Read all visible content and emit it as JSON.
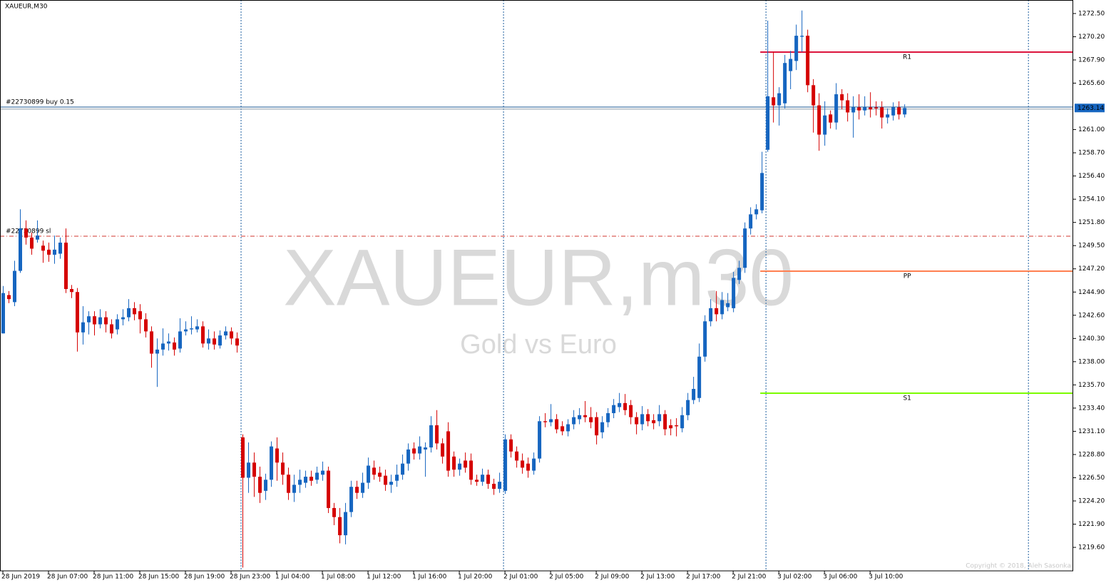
{
  "chart_data": {
    "type": "candlestick",
    "symbol_label": "XAUEUR,M30",
    "watermark": "XAUEUR,m30",
    "watermark_sub": "Gold vs Euro",
    "copyright": "Copyright © 2018, Aleh Sasonka",
    "up_color": "#1565c0",
    "down_color": "#d50000",
    "xlim": [
      -0.5,
      187.6
    ],
    "ylim": [
      1217.27,
      1273.84
    ],
    "yticks": [
      {
        "value": 1272.5,
        "label": "1272.50"
      },
      {
        "value": 1270.2,
        "label": "1270.20"
      },
      {
        "value": 1267.9,
        "label": "1267.90"
      },
      {
        "value": 1265.6,
        "label": "1265.60"
      },
      {
        "value": 1261.0,
        "label": "1261.00"
      },
      {
        "value": 1258.7,
        "label": "1258.70"
      },
      {
        "value": 1256.4,
        "label": "1256.40"
      },
      {
        "value": 1254.1,
        "label": "1254.10"
      },
      {
        "value": 1251.8,
        "label": "1251.80"
      },
      {
        "value": 1249.5,
        "label": "1249.50"
      },
      {
        "value": 1247.2,
        "label": "1247.20"
      },
      {
        "value": 1244.9,
        "label": "1244.90"
      },
      {
        "value": 1242.6,
        "label": "1242.60"
      },
      {
        "value": 1240.3,
        "label": "1240.30"
      },
      {
        "value": 1238.0,
        "label": "1238.00"
      },
      {
        "value": 1235.7,
        "label": "1235.70"
      },
      {
        "value": 1233.4,
        "label": "1233.40"
      },
      {
        "value": 1231.1,
        "label": "1231.10"
      },
      {
        "value": 1228.8,
        "label": "1228.80"
      },
      {
        "value": 1226.5,
        "label": "1226.50"
      },
      {
        "value": 1224.2,
        "label": "1224.20"
      },
      {
        "value": 1221.9,
        "label": "1221.90"
      },
      {
        "value": 1219.6,
        "label": "1219.60"
      }
    ],
    "xticks": [
      {
        "value": 0,
        "label": "28 Jun 2019"
      },
      {
        "value": 8,
        "label": "28 Jun 07:00"
      },
      {
        "value": 16,
        "label": "28 Jun 11:00"
      },
      {
        "value": 24,
        "label": "28 Jun 15:00"
      },
      {
        "value": 32,
        "label": "28 Jun 19:00"
      },
      {
        "value": 40,
        "label": "28 Jun 23:00"
      },
      {
        "value": 48,
        "label": "1 Jul 04:00"
      },
      {
        "value": 56,
        "label": "1 Jul 08:00"
      },
      {
        "value": 64,
        "label": "1 Jul 12:00"
      },
      {
        "value": 72,
        "label": "1 Jul 16:00"
      },
      {
        "value": 80,
        "label": "1 Jul 20:00"
      },
      {
        "value": 88,
        "label": "2 Jul 01:00"
      },
      {
        "value": 96,
        "label": "2 Jul 05:00"
      },
      {
        "value": 104,
        "label": "2 Jul 09:00"
      },
      {
        "value": 112,
        "label": "2 Jul 13:00"
      },
      {
        "value": 120,
        "label": "2 Jul 17:00"
      },
      {
        "value": 128,
        "label": "2 Jul 21:00"
      },
      {
        "value": 136,
        "label": "3 Jul 02:00"
      },
      {
        "value": 144,
        "label": "3 Jul 06:00"
      },
      {
        "value": 152,
        "label": "3 Jul 10:00"
      }
    ],
    "period_separators": [
      41.75,
      87.75,
      133.75,
      179.75
    ],
    "levels": [
      {
        "name": "R1",
        "value": 1268.68,
        "color": "#dc143c"
      },
      {
        "name": "PP",
        "value": 1246.97,
        "color": "#ff7f50"
      },
      {
        "name": "S1",
        "value": 1234.88,
        "color": "#7cfc00"
      }
    ],
    "orders": [
      {
        "label": "#22730899 buy 0.15",
        "value": 1263.23,
        "color": "#1e5a96",
        "style": "solid"
      },
      {
        "label": "#22730899 sl",
        "value": 1250.43,
        "color": "#d0342c",
        "style": "dashdot"
      }
    ],
    "bid": 1263.14,
    "candles": [
      [
        1240.8,
        1245.5,
        1240.8,
        1244.8
      ],
      [
        1244.6,
        1245.0,
        1243.8,
        1244.2
      ],
      [
        1243.9,
        1248.0,
        1243.5,
        1247.0
      ],
      [
        1247.0,
        1253.1,
        1246.8,
        1251.2
      ],
      [
        1251.2,
        1252.0,
        1249.6,
        1250.3
      ],
      [
        1250.3,
        1250.8,
        1248.6,
        1249.2
      ],
      [
        1250.1,
        1252.0,
        1249.8,
        1250.5
      ],
      [
        1249.5,
        1250.0,
        1247.8,
        1249.0
      ],
      [
        1249.1,
        1249.8,
        1247.9,
        1248.6
      ],
      [
        1248.6,
        1250.5,
        1247.7,
        1249.1
      ],
      [
        1248.7,
        1250.3,
        1248.2,
        1249.8
      ],
      [
        1249.8,
        1251.2,
        1244.8,
        1245.2
      ],
      [
        1245.2,
        1245.6,
        1244.3,
        1244.9
      ],
      [
        1244.9,
        1245.3,
        1239.0,
        1240.9
      ],
      [
        1240.9,
        1243.5,
        1239.7,
        1241.9
      ],
      [
        1241.9,
        1243.0,
        1240.7,
        1242.5
      ],
      [
        1242.5,
        1243.0,
        1240.6,
        1241.7
      ],
      [
        1241.7,
        1243.2,
        1241.3,
        1242.4
      ],
      [
        1242.4,
        1243.0,
        1240.9,
        1241.7
      ],
      [
        1241.7,
        1242.2,
        1240.3,
        1240.8
      ],
      [
        1241.2,
        1242.7,
        1240.7,
        1242.2
      ],
      [
        1242.2,
        1243.2,
        1241.6,
        1242.4
      ],
      [
        1242.4,
        1244.2,
        1242.0,
        1243.3
      ],
      [
        1243.3,
        1243.9,
        1242.1,
        1242.7
      ],
      [
        1243.0,
        1243.7,
        1240.8,
        1242.2
      ],
      [
        1242.2,
        1242.8,
        1240.4,
        1241.0
      ],
      [
        1241.0,
        1241.5,
        1237.4,
        1238.8
      ],
      [
        1238.8,
        1240.3,
        1235.5,
        1239.2
      ],
      [
        1239.2,
        1241.3,
        1238.6,
        1239.8
      ],
      [
        1239.8,
        1240.8,
        1239.1,
        1240.0
      ],
      [
        1239.9,
        1240.4,
        1238.6,
        1239.2
      ],
      [
        1239.3,
        1242.3,
        1238.9,
        1241.0
      ],
      [
        1241.0,
        1242.0,
        1240.6,
        1241.2
      ],
      [
        1241.2,
        1242.5,
        1240.7,
        1241.3
      ],
      [
        1241.2,
        1242.2,
        1240.9,
        1241.5
      ],
      [
        1241.5,
        1242.0,
        1239.4,
        1239.8
      ],
      [
        1239.8,
        1241.2,
        1239.2,
        1240.3
      ],
      [
        1240.3,
        1241.0,
        1239.2,
        1239.7
      ],
      [
        1239.6,
        1241.1,
        1239.3,
        1240.6
      ],
      [
        1240.6,
        1241.5,
        1240.2,
        1241.0
      ],
      [
        1241.0,
        1241.4,
        1239.7,
        1240.3
      ],
      [
        1240.3,
        1240.9,
        1238.9,
        1239.6
      ],
      [
        1230.5,
        1230.8,
        1217.6,
        1226.5
      ],
      [
        1226.5,
        1230.0,
        1225.0,
        1228.0
      ],
      [
        1228.0,
        1229.0,
        1224.6,
        1226.6
      ],
      [
        1226.6,
        1227.6,
        1224.0,
        1225.0
      ],
      [
        1225.2,
        1226.9,
        1224.3,
        1226.3
      ],
      [
        1226.3,
        1230.1,
        1225.6,
        1229.6
      ],
      [
        1229.4,
        1230.5,
        1226.2,
        1228.0
      ],
      [
        1228.0,
        1229.0,
        1225.8,
        1226.8
      ],
      [
        1226.8,
        1227.5,
        1224.3,
        1225.0
      ],
      [
        1225.0,
        1226.8,
        1224.1,
        1225.8
      ],
      [
        1225.8,
        1227.3,
        1225.0,
        1226.3
      ],
      [
        1226.0,
        1227.2,
        1225.5,
        1226.6
      ],
      [
        1226.6,
        1227.2,
        1225.7,
        1226.2
      ],
      [
        1226.3,
        1227.6,
        1225.9,
        1227.0
      ],
      [
        1226.8,
        1228.1,
        1226.2,
        1227.2
      ],
      [
        1227.2,
        1227.6,
        1223.0,
        1223.5
      ],
      [
        1223.5,
        1224.0,
        1221.8,
        1222.6
      ],
      [
        1222.6,
        1223.5,
        1220.0,
        1220.8
      ],
      [
        1220.8,
        1224.0,
        1219.9,
        1223.1
      ],
      [
        1223.1,
        1226.2,
        1222.6,
        1225.6
      ],
      [
        1225.6,
        1226.2,
        1224.4,
        1225.0
      ],
      [
        1225.0,
        1227.0,
        1224.5,
        1226.0
      ],
      [
        1226.0,
        1228.5,
        1225.4,
        1227.7
      ],
      [
        1227.5,
        1228.2,
        1226.3,
        1226.8
      ],
      [
        1227.0,
        1227.6,
        1226.1,
        1226.6
      ],
      [
        1226.7,
        1227.3,
        1225.2,
        1225.8
      ],
      [
        1225.8,
        1226.8,
        1225.0,
        1226.1
      ],
      [
        1226.2,
        1227.8,
        1225.6,
        1226.8
      ],
      [
        1226.8,
        1228.8,
        1226.3,
        1227.9
      ],
      [
        1227.9,
        1229.9,
        1227.2,
        1229.3
      ],
      [
        1229.4,
        1230.0,
        1228.3,
        1228.9
      ],
      [
        1228.9,
        1230.6,
        1228.3,
        1229.6
      ],
      [
        1229.3,
        1230.0,
        1226.6,
        1229.5
      ],
      [
        1229.5,
        1232.6,
        1229.0,
        1231.7
      ],
      [
        1231.7,
        1233.2,
        1229.3,
        1229.9
      ],
      [
        1229.9,
        1230.4,
        1227.9,
        1228.6
      ],
      [
        1231.1,
        1232.0,
        1226.6,
        1227.2
      ],
      [
        1228.6,
        1229.1,
        1226.6,
        1227.3
      ],
      [
        1227.3,
        1228.4,
        1226.7,
        1227.9
      ],
      [
        1228.2,
        1229.0,
        1227.0,
        1227.5
      ],
      [
        1228.2,
        1228.9,
        1225.8,
        1226.3
      ],
      [
        1226.3,
        1226.8,
        1225.7,
        1226.1
      ],
      [
        1226.1,
        1227.4,
        1225.7,
        1226.8
      ],
      [
        1226.8,
        1227.3,
        1225.4,
        1225.9
      ],
      [
        1225.9,
        1226.4,
        1224.8,
        1225.4
      ],
      [
        1225.4,
        1227.0,
        1225.0,
        1226.1
      ],
      [
        1225.2,
        1230.8,
        1224.9,
        1230.3
      ],
      [
        1230.3,
        1230.8,
        1228.5,
        1229.1
      ],
      [
        1229.1,
        1229.6,
        1227.5,
        1228.2
      ],
      [
        1228.2,
        1228.9,
        1226.9,
        1227.5
      ],
      [
        1227.9,
        1228.5,
        1226.5,
        1227.2
      ],
      [
        1227.2,
        1229.0,
        1226.8,
        1228.4
      ],
      [
        1228.4,
        1232.6,
        1228.0,
        1232.1
      ],
      [
        1232.1,
        1232.9,
        1231.5,
        1232.0
      ],
      [
        1232.0,
        1233.8,
        1231.6,
        1232.3
      ],
      [
        1232.3,
        1232.8,
        1230.9,
        1231.3
      ],
      [
        1231.6,
        1232.1,
        1230.7,
        1231.1
      ],
      [
        1231.1,
        1232.3,
        1230.6,
        1231.8
      ],
      [
        1231.8,
        1233.2,
        1231.3,
        1232.5
      ],
      [
        1232.3,
        1233.4,
        1231.8,
        1232.7
      ],
      [
        1232.7,
        1234.1,
        1232.0,
        1232.5
      ],
      [
        1232.5,
        1233.5,
        1231.4,
        1232.0
      ],
      [
        1232.5,
        1233.0,
        1229.8,
        1230.7
      ],
      [
        1231.0,
        1232.6,
        1230.4,
        1232.0
      ],
      [
        1232.0,
        1233.4,
        1231.5,
        1232.9
      ],
      [
        1232.9,
        1234.3,
        1232.4,
        1233.7
      ],
      [
        1233.5,
        1234.9,
        1233.0,
        1233.9
      ],
      [
        1233.9,
        1234.8,
        1232.7,
        1233.2
      ],
      [
        1233.7,
        1234.2,
        1231.8,
        1232.5
      ],
      [
        1232.5,
        1233.0,
        1230.8,
        1231.8
      ],
      [
        1231.8,
        1233.6,
        1231.2,
        1232.8
      ],
      [
        1232.8,
        1233.3,
        1231.6,
        1232.1
      ],
      [
        1232.2,
        1232.8,
        1231.3,
        1231.9
      ],
      [
        1232.1,
        1233.7,
        1231.6,
        1232.8
      ],
      [
        1232.8,
        1233.2,
        1230.7,
        1231.3
      ],
      [
        1231.7,
        1232.3,
        1230.7,
        1231.4
      ],
      [
        1231.7,
        1232.4,
        1230.6,
        1231.6
      ],
      [
        1231.4,
        1233.5,
        1231.0,
        1232.7
      ],
      [
        1232.7,
        1234.9,
        1232.2,
        1234.2
      ],
      [
        1234.2,
        1236.5,
        1233.8,
        1235.3
      ],
      [
        1234.4,
        1239.8,
        1234.0,
        1238.5
      ],
      [
        1238.5,
        1242.6,
        1238.0,
        1242.0
      ],
      [
        1242.0,
        1244.2,
        1241.5,
        1243.3
      ],
      [
        1243.3,
        1245.0,
        1242.0,
        1242.7
      ],
      [
        1242.7,
        1244.9,
        1242.2,
        1244.1
      ],
      [
        1243.4,
        1244.8,
        1243.0,
        1243.8
      ],
      [
        1243.3,
        1246.9,
        1242.9,
        1246.3
      ],
      [
        1246.1,
        1248.0,
        1245.7,
        1247.3
      ],
      [
        1247.3,
        1251.8,
        1246.8,
        1251.2
      ],
      [
        1251.2,
        1253.3,
        1250.6,
        1252.6
      ],
      [
        1252.6,
        1253.6,
        1252.1,
        1253.1
      ],
      [
        1253.0,
        1258.8,
        1252.7,
        1256.7
      ],
      [
        1259.0,
        1271.8,
        1258.8,
        1264.3
      ],
      [
        1264.2,
        1268.7,
        1261.7,
        1263.4
      ],
      [
        1263.4,
        1265.2,
        1261.4,
        1264.6
      ],
      [
        1263.6,
        1268.4,
        1263.1,
        1267.6
      ],
      [
        1266.8,
        1268.8,
        1265.0,
        1268.0
      ],
      [
        1267.8,
        1271.4,
        1266.9,
        1270.3
      ],
      [
        1270.2,
        1272.8,
        1268.7,
        1270.3
      ],
      [
        1270.3,
        1270.9,
        1264.7,
        1265.4
      ],
      [
        1265.4,
        1266.0,
        1260.7,
        1263.4
      ],
      [
        1263.4,
        1264.6,
        1258.9,
        1260.5
      ],
      [
        1260.5,
        1263.8,
        1259.4,
        1262.4
      ],
      [
        1262.5,
        1262.9,
        1261.1,
        1261.7
      ],
      [
        1261.7,
        1265.6,
        1261.0,
        1264.5
      ],
      [
        1264.5,
        1265.0,
        1263.0,
        1263.9
      ],
      [
        1263.9,
        1264.6,
        1261.8,
        1262.7
      ],
      [
        1262.7,
        1264.3,
        1260.2,
        1263.2
      ],
      [
        1263.2,
        1264.5,
        1262.0,
        1262.9
      ],
      [
        1262.9,
        1264.3,
        1262.4,
        1263.2
      ],
      [
        1263.2,
        1264.7,
        1262.2,
        1263.0
      ],
      [
        1263.2,
        1263.8,
        1262.4,
        1263.1
      ],
      [
        1263.2,
        1263.8,
        1261.1,
        1262.2
      ],
      [
        1262.2,
        1263.1,
        1261.6,
        1262.5
      ],
      [
        1262.4,
        1263.7,
        1261.9,
        1263.2
      ],
      [
        1263.2,
        1263.8,
        1262.0,
        1262.5
      ],
      [
        1262.5,
        1263.5,
        1262.2,
        1263.14
      ]
    ]
  }
}
